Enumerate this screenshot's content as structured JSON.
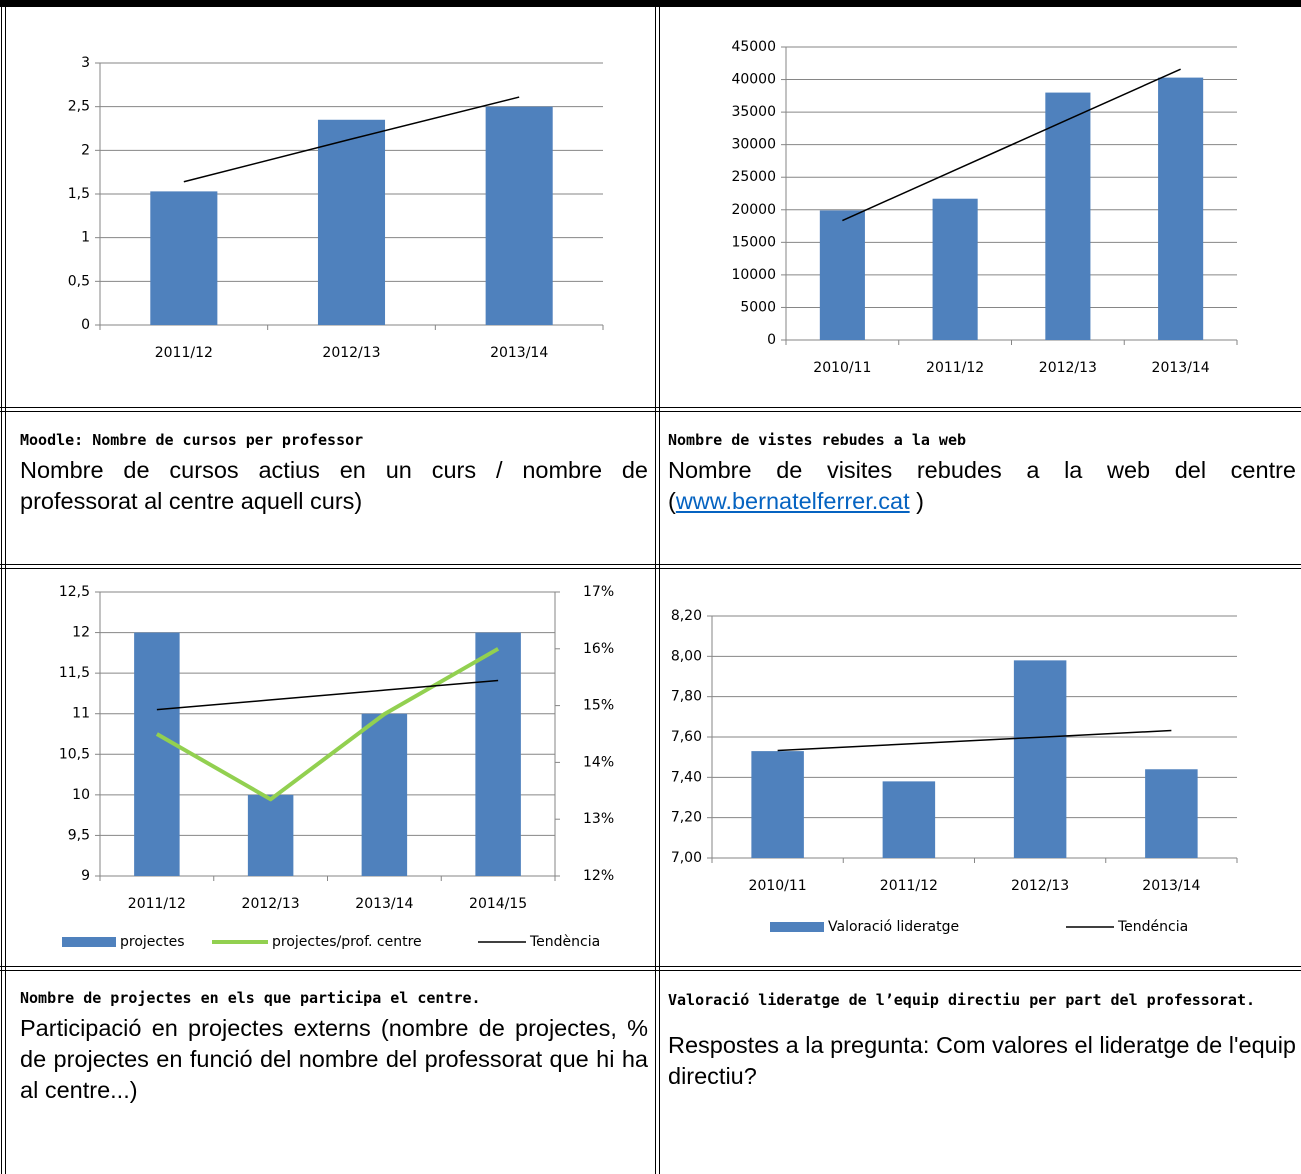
{
  "chart_data": [
    {
      "type": "bar",
      "categories": [
        "2011/12",
        "2012/13",
        "2013/14"
      ],
      "ylim": [
        0,
        3
      ],
      "yticks": [
        0,
        {
          "value": 0.5,
          "label": "0,5"
        },
        1,
        {
          "value": 1.5,
          "label": "1,5"
        },
        2,
        {
          "value": 2.5,
          "label": "2,5"
        },
        3
      ],
      "grid": true,
      "series": [
        {
          "type": "bar",
          "color": "#4f81bd",
          "values": [
            1.53,
            2.35,
            2.5
          ]
        },
        {
          "type": "line",
          "color": "#000000",
          "values": [
            1.64,
            2.13,
            2.61
          ]
        }
      ]
    },
    {
      "type": "bar",
      "categories": [
        "2010/11",
        "2011/12",
        "2012/13",
        "2013/14"
      ],
      "ylim": [
        0,
        45000
      ],
      "yticks": [
        0,
        5000,
        10000,
        15000,
        20000,
        25000,
        30000,
        35000,
        40000,
        45000
      ],
      "grid": true,
      "series": [
        {
          "type": "bar",
          "color": "#4f81bd",
          "values": [
            19900,
            21700,
            38000,
            40300
          ]
        },
        {
          "type": "line",
          "color": "#000000",
          "values": [
            18350,
            26100,
            33850,
            41600
          ]
        }
      ]
    },
    {
      "type": "bar",
      "categories": [
        "2011/12",
        "2012/13",
        "2013/14",
        "2014/15"
      ],
      "ylim": [
        9,
        12.5
      ],
      "yticks": [
        9,
        {
          "value": 9.5,
          "label": "9,5"
        },
        10,
        {
          "value": 10.5,
          "label": "10,5"
        },
        11,
        {
          "value": 11.5,
          "label": "11,5"
        },
        12,
        {
          "value": 12.5,
          "label": "12,5"
        }
      ],
      "y2lim": [
        12,
        17
      ],
      "y2ticks": [
        {
          "value": 12,
          "label": "12%"
        },
        {
          "value": 13,
          "label": "13%"
        },
        {
          "value": 14,
          "label": "14%"
        },
        {
          "value": 15,
          "label": "15%"
        },
        {
          "value": 16,
          "label": "16%"
        },
        {
          "value": 17,
          "label": "17%"
        }
      ],
      "grid": true,
      "legend": "bottom",
      "series": [
        {
          "name": "projectes",
          "type": "bar",
          "color": "#4f81bd",
          "values": [
            12,
            10,
            11,
            12
          ]
        },
        {
          "name": "projectes/prof. centre",
          "type": "line",
          "axis": "y2",
          "color": "#92d050",
          "values": [
            14.5,
            13.35,
            14.85,
            16.0
          ]
        },
        {
          "name": "Tendència",
          "type": "line",
          "color": "#000000",
          "values": [
            11.05,
            11.17,
            11.29,
            11.41
          ]
        }
      ]
    },
    {
      "type": "bar",
      "categories": [
        "2010/11",
        "2011/12",
        "2012/13",
        "2013/14"
      ],
      "ylim": [
        7,
        8.2
      ],
      "yticks": [
        {
          "value": 7,
          "label": "7,00"
        },
        {
          "value": 7.2,
          "label": "7,20"
        },
        {
          "value": 7.4,
          "label": "7,40"
        },
        {
          "value": 7.6,
          "label": "7,60"
        },
        {
          "value": 7.8,
          "label": "7,80"
        },
        {
          "value": 8,
          "label": "8,00"
        },
        {
          "value": 8.2,
          "label": "8,20"
        }
      ],
      "grid": true,
      "legend": "bottom",
      "series": [
        {
          "name": "Valoració lideratge",
          "type": "bar",
          "color": "#4f81bd",
          "values": [
            7.53,
            7.38,
            7.98,
            7.44
          ]
        },
        {
          "name": "Tendéncia",
          "type": "line",
          "color": "#000000",
          "values": [
            7.533,
            7.566,
            7.599,
            7.632
          ]
        }
      ]
    }
  ],
  "captions": [
    {
      "title": "Moodle: Nombre de cursos per professor",
      "text": "Nombre de cursos actius en un curs / nombre de professorat al centre aquell curs)"
    },
    {
      "title": "Nombre de vistes rebudes a la web",
      "text_before": "Nombre de visites rebudes a la web del centre (",
      "link": "www.bernatelferrer.cat",
      "text_after": " )"
    },
    {
      "title": "Nombre de projectes en els que participa el centre.",
      "text": "Participació en projectes externs (nombre de projectes, % de projectes en funció del nombre del professorat que hi ha al centre...)"
    },
    {
      "title": "Valoració lideratge de l’equip directiu per part del professorat.",
      "text": "Respostes a la pregunta: Com valores el lideratge de l'equip directiu?"
    }
  ]
}
